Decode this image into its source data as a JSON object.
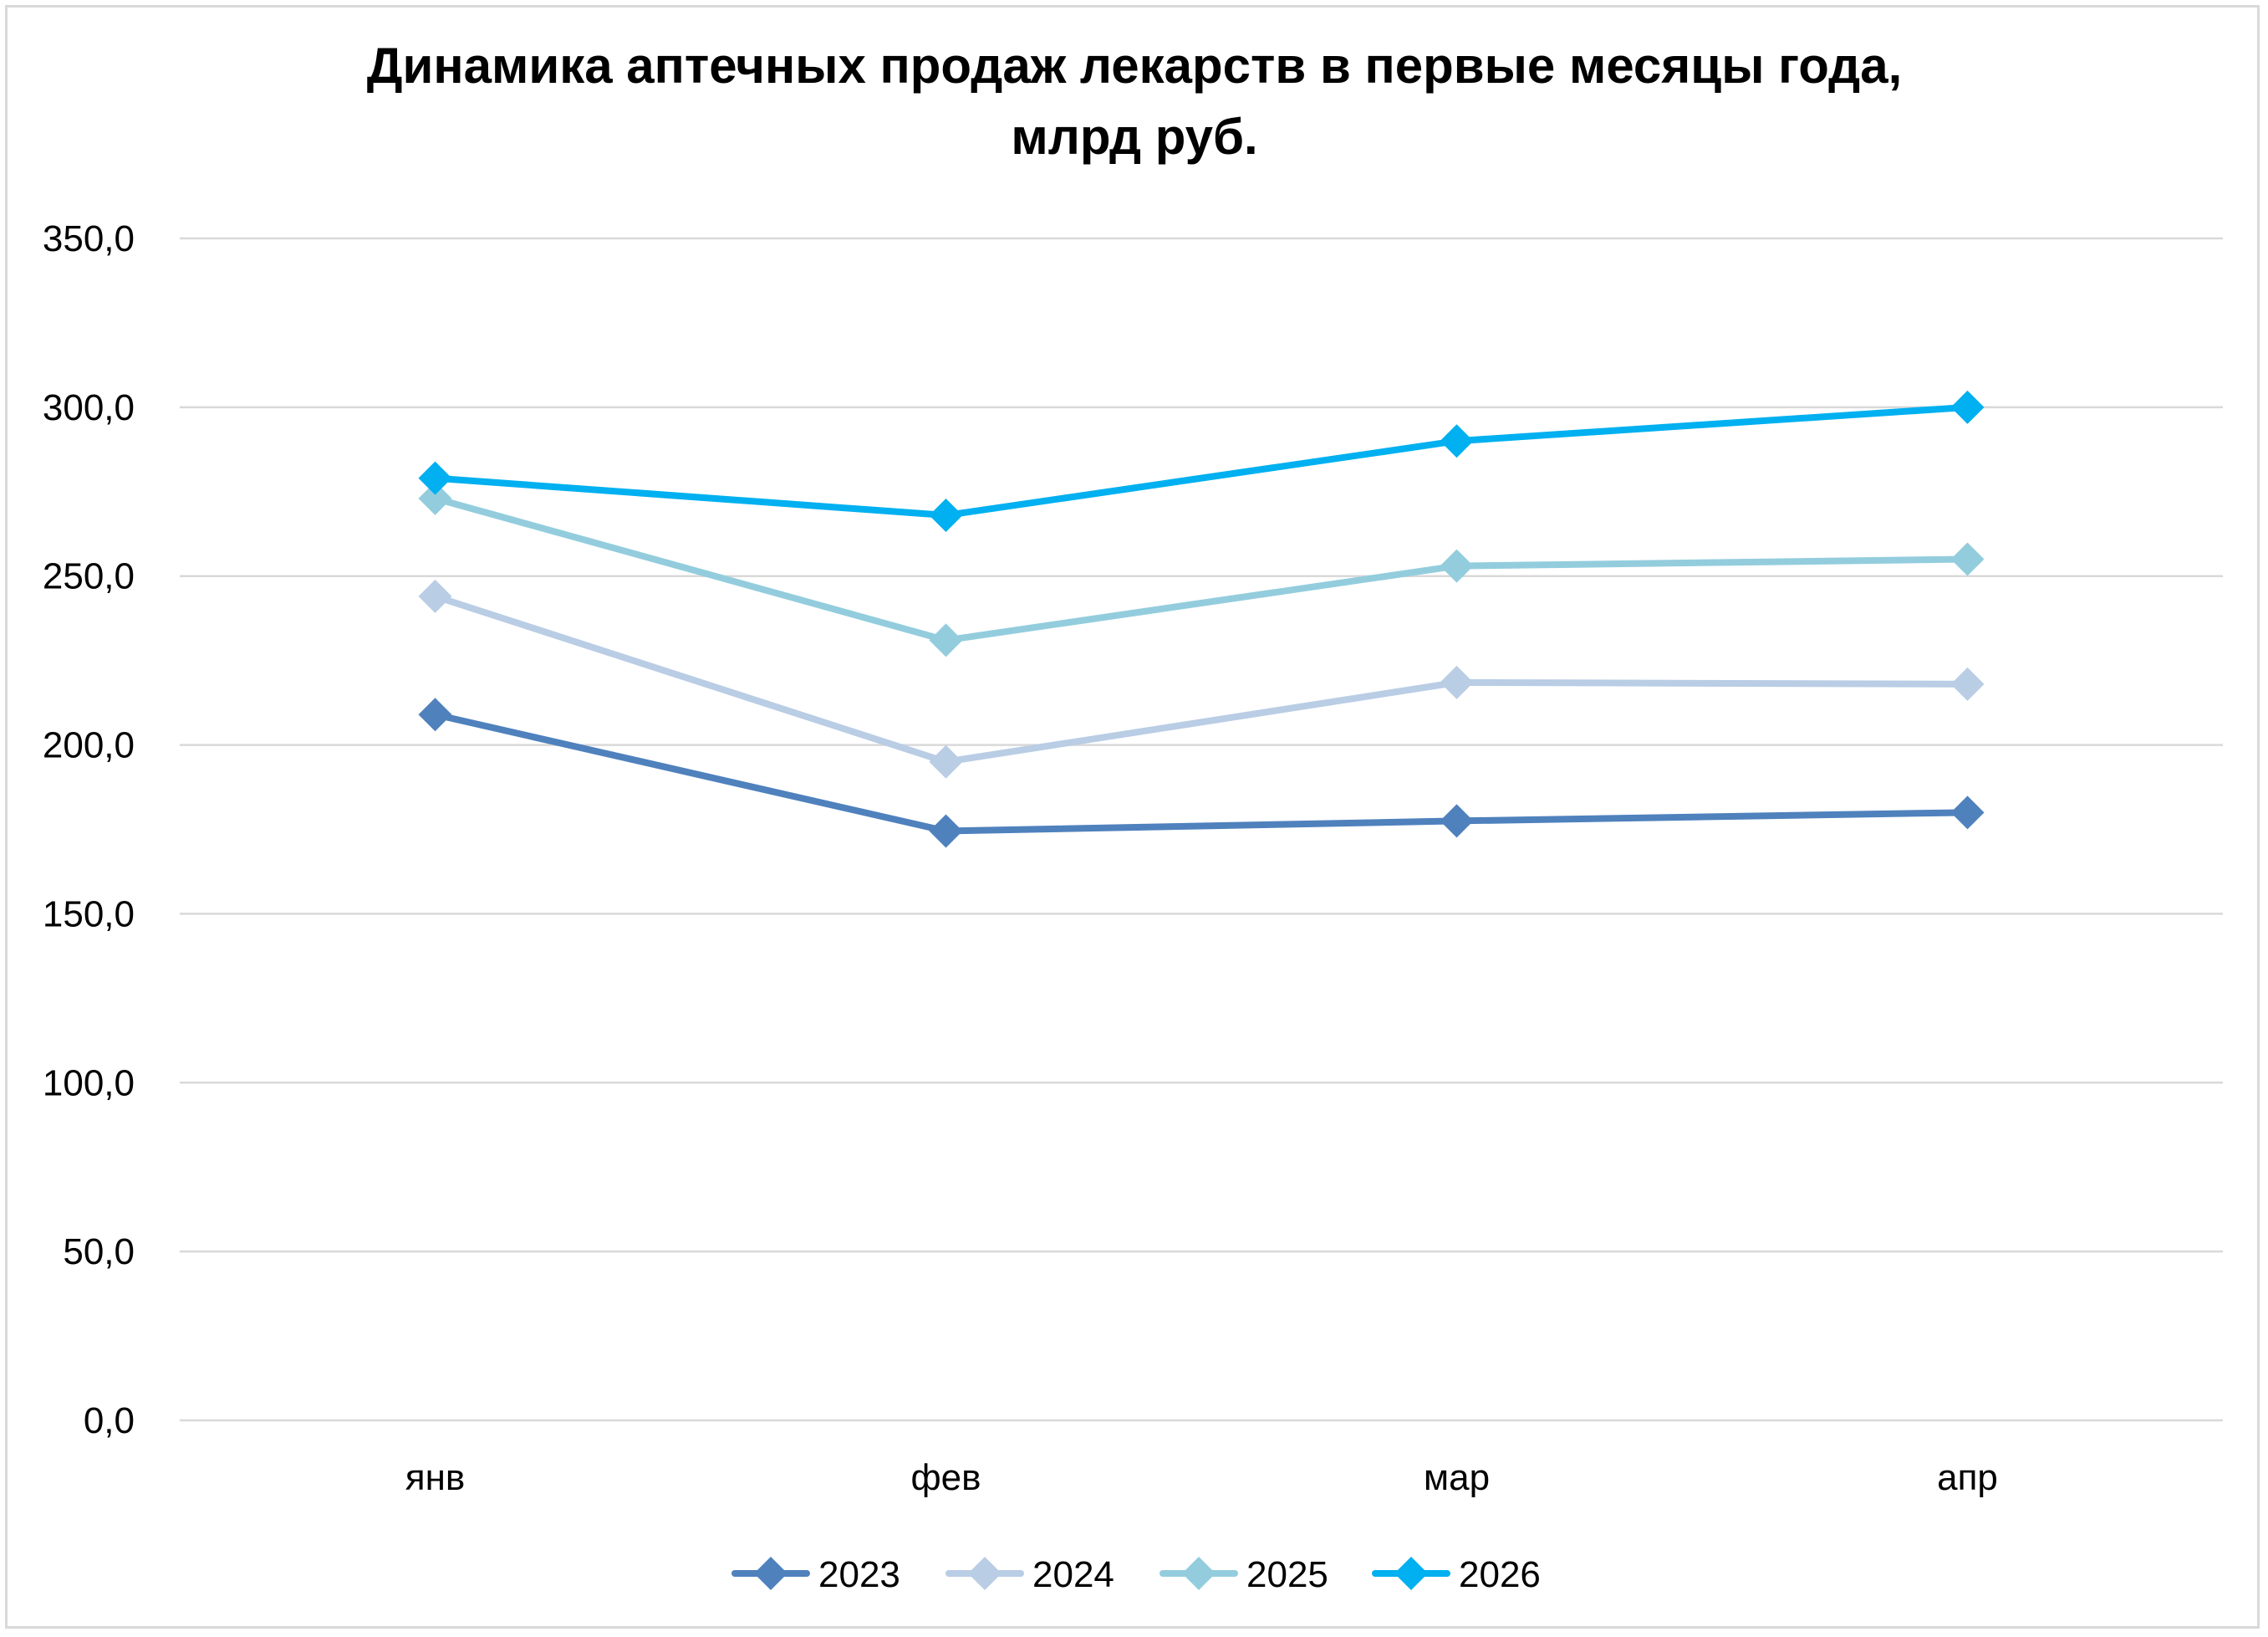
{
  "chart_data": {
    "type": "line",
    "title": "Динамика аптечных продаж лекарств в первые месяцы года, млрд руб.",
    "title_lines": [
      "Динамика аптечных продаж лекарств в первые месяцы года,",
      "млрд руб."
    ],
    "categories": [
      "янв",
      "фев",
      "мар",
      "апр"
    ],
    "ylim": [
      0,
      350
    ],
    "yticks": [
      0,
      50,
      100,
      150,
      200,
      250,
      300,
      350
    ],
    "ytick_labels": [
      "0,0",
      "50,0",
      "100,0",
      "150,0",
      "200,0",
      "250,0",
      "300,0",
      "350,0"
    ],
    "grid": true,
    "legend_position": "bottom",
    "marker": "diamond",
    "series": [
      {
        "name": "2023",
        "color": "#4f81bd",
        "values": [
          209,
          174.5,
          177.5,
          180
        ]
      },
      {
        "name": "2024",
        "color": "#b9cde5",
        "values": [
          244,
          195,
          218.5,
          218
        ]
      },
      {
        "name": "2025",
        "color": "#93cddd",
        "values": [
          273,
          231,
          253,
          255
        ]
      },
      {
        "name": "2026",
        "color": "#00b0f0",
        "values": [
          279,
          268,
          290,
          300
        ]
      }
    ]
  }
}
